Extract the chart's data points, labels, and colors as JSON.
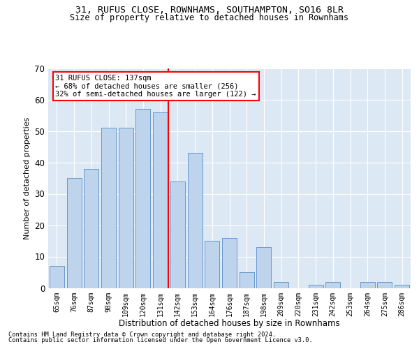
{
  "title1": "31, RUFUS CLOSE, ROWNHAMS, SOUTHAMPTON, SO16 8LR",
  "title2": "Size of property relative to detached houses in Rownhams",
  "xlabel": "Distribution of detached houses by size in Rownhams",
  "ylabel": "Number of detached properties",
  "categories": [
    "65sqm",
    "76sqm",
    "87sqm",
    "98sqm",
    "109sqm",
    "120sqm",
    "131sqm",
    "142sqm",
    "153sqm",
    "164sqm",
    "176sqm",
    "187sqm",
    "198sqm",
    "209sqm",
    "220sqm",
    "231sqm",
    "242sqm",
    "253sqm",
    "264sqm",
    "275sqm",
    "286sqm"
  ],
  "values": [
    7,
    35,
    38,
    51,
    51,
    57,
    56,
    34,
    43,
    15,
    16,
    5,
    13,
    2,
    0,
    1,
    2,
    0,
    2,
    2,
    1
  ],
  "bar_color": "#bdd4ec",
  "bar_edge_color": "#6699cc",
  "bg_color": "#dde8f5",
  "footer1": "Contains HM Land Registry data © Crown copyright and database right 2024.",
  "footer2": "Contains public sector information licensed under the Open Government Licence v3.0.",
  "ylim": [
    0,
    70
  ],
  "yticks": [
    0,
    10,
    20,
    30,
    40,
    50,
    60,
    70
  ],
  "marker_label": "31 RUFUS CLOSE: 137sqm",
  "annotation_line1": "← 68% of detached houses are smaller (256)",
  "annotation_line2": "32% of semi-detached houses are larger (122) →"
}
